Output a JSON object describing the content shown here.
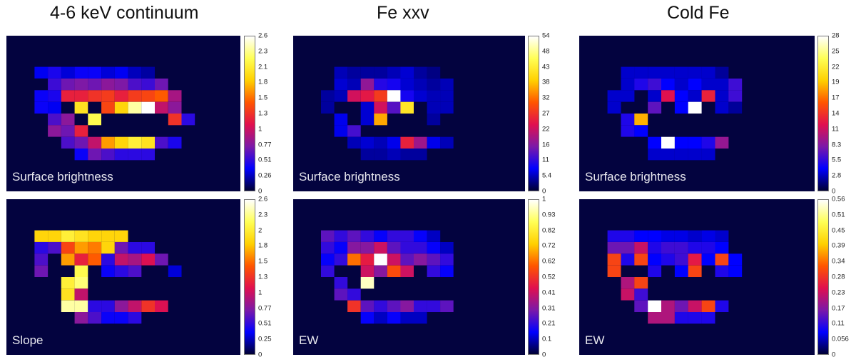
{
  "columns": [
    {
      "title": "4-6 keV continuum"
    },
    {
      "title": "Fe xxv"
    },
    {
      "title": "Cold Fe"
    }
  ],
  "colors": {
    "background": "#03033f",
    "colormap": [
      "#000033",
      "#0000ff",
      "#7c19a8",
      "#e0104f",
      "#ff5500",
      "#ffd000",
      "#ffff55",
      "#ffffff"
    ]
  },
  "chart_data": [
    {
      "type": "heatmap",
      "column": "4-6 keV continuum",
      "label": "Surface brightness",
      "colorbar_ticks": [
        "2.6",
        "2.3",
        "2.1",
        "1.8",
        "1.5",
        "1.3",
        "1",
        "0.77",
        "0.51",
        "0.26",
        "0"
      ],
      "range": [
        0,
        2.6
      ],
      "cells": [
        [
          0.35,
          0.45,
          0.3,
          0.4,
          0.4,
          0.3,
          0.35,
          0.25,
          0.2,
          0.0,
          0.0,
          0.0,
          0.0,
          0.0
        ],
        [
          0.0,
          0.55,
          0.7,
          0.75,
          0.7,
          0.8,
          0.75,
          0.6,
          0.55,
          0.7,
          0.0,
          0.0,
          0.0,
          0.0
        ],
        [
          0.4,
          0.45,
          1.2,
          1.2,
          1.3,
          1.35,
          1.2,
          1.35,
          1.4,
          1.5,
          0.9,
          0.0,
          0.0,
          0.0
        ],
        [
          0.4,
          0.35,
          0.0,
          2.0,
          0.0,
          1.4,
          1.9,
          2.4,
          2.6,
          1.0,
          0.8,
          0.0,
          0.0,
          0.0
        ],
        [
          0.0,
          0.6,
          0.8,
          0.0,
          2.2,
          0.0,
          0.0,
          0.0,
          0.0,
          0.0,
          1.3,
          0.5,
          0.0,
          0.0
        ],
        [
          0.0,
          0.8,
          0.7,
          1.2,
          0.0,
          0.0,
          0.0,
          0.0,
          0.0,
          0.0,
          0.0,
          0.0,
          0.0,
          0.0
        ],
        [
          0.0,
          0.0,
          0.6,
          0.7,
          1.0,
          1.7,
          1.9,
          2.1,
          2.0,
          0.6,
          0.45,
          0.0,
          0.0,
          0.0
        ],
        [
          0.0,
          0.0,
          0.0,
          0.4,
          0.7,
          0.6,
          0.5,
          0.5,
          0.5,
          0.0,
          0.0,
          0.0,
          0.0,
          0.0
        ]
      ]
    },
    {
      "type": "heatmap",
      "column": "4-6 keV continuum",
      "label": "Slope",
      "colorbar_ticks": [
        "2.6",
        "2.3",
        "2",
        "1.8",
        "1.5",
        "1.3",
        "1",
        "0.77",
        "0.51",
        "0.25",
        "0"
      ],
      "range": [
        0,
        2.6
      ],
      "cells": [
        [
          1.9,
          1.9,
          2.1,
          2.0,
          1.9,
          1.9,
          1.9,
          0.0,
          0.0,
          0.0,
          0.0,
          0.0,
          0.0,
          0.0
        ],
        [
          0.5,
          0.6,
          1.4,
          1.7,
          1.6,
          1.9,
          0.7,
          0.5,
          0.5,
          0.0,
          0.0,
          0.0,
          0.0,
          0.0
        ],
        [
          0.6,
          0.0,
          1.7,
          1.2,
          1.5,
          0.5,
          1.0,
          0.9,
          1.1,
          0.7,
          0.0,
          0.0,
          0.0,
          0.0
        ],
        [
          0.7,
          0.0,
          0.0,
          2.2,
          0.0,
          0.4,
          0.5,
          0.6,
          0.0,
          0.0,
          0.3,
          0.0,
          0.0,
          0.0
        ],
        [
          0.0,
          0.0,
          2.1,
          2.3,
          0.0,
          0.0,
          0.0,
          0.0,
          0.0,
          0.0,
          0.0,
          0.0,
          0.0,
          0.0
        ],
        [
          0.0,
          0.0,
          2.0,
          1.0,
          0.0,
          0.0,
          0.0,
          0.0,
          0.0,
          0.0,
          0.0,
          0.0,
          0.0,
          0.0
        ],
        [
          0.0,
          0.0,
          2.4,
          2.4,
          0.5,
          0.5,
          0.8,
          1.0,
          1.3,
          1.1,
          0.0,
          0.0,
          0.0,
          0.0
        ],
        [
          0.0,
          0.0,
          0.0,
          0.8,
          0.6,
          0.4,
          0.4,
          0.5,
          0.0,
          0.0,
          0.0,
          0.0,
          0.0,
          0.0
        ]
      ]
    },
    {
      "type": "heatmap",
      "column": "Fe xxv",
      "label": "Surface brightness",
      "colorbar_ticks": [
        "54",
        "48",
        "43",
        "38",
        "32",
        "27",
        "22",
        "16",
        "11",
        "5.4",
        "0"
      ],
      "range": [
        0,
        54
      ],
      "cells": [
        [
          0.0,
          5,
          4,
          4,
          4,
          5,
          6,
          4,
          3,
          0.0,
          0.0,
          0.0,
          0.0,
          0.0
        ],
        [
          0.0,
          6,
          5,
          17,
          10,
          9,
          6,
          5,
          4,
          5,
          0.0,
          0.0,
          0.0,
          0.0
        ],
        [
          4,
          5,
          22,
          24,
          28,
          54,
          9,
          6,
          5,
          5,
          0.0,
          0.0,
          0.0,
          0.0
        ],
        [
          4,
          0.0,
          0.0,
          6,
          22,
          13,
          42,
          0.0,
          5,
          5,
          0.0,
          0.0,
          0.0,
          0.0
        ],
        [
          0.0,
          7,
          0.0,
          6,
          36,
          0.0,
          0.0,
          0.0,
          4,
          0.0,
          0.0,
          0.0,
          0.0,
          0.0
        ],
        [
          0.0,
          7,
          12,
          0.0,
          0.0,
          0.0,
          0.0,
          0.0,
          0.0,
          0.0,
          0.0,
          0.0,
          0.0,
          0.0
        ],
        [
          0.0,
          0.0,
          5,
          6,
          5,
          7,
          25,
          18,
          7,
          5,
          0.0,
          0.0,
          0.0,
          0.0
        ],
        [
          0.0,
          0.0,
          0.0,
          4,
          4,
          5,
          4,
          4,
          0.0,
          0.0,
          0.0,
          0.0,
          0.0,
          0.0
        ]
      ]
    },
    {
      "type": "heatmap",
      "column": "Fe xxv",
      "label": "EW",
      "colorbar_ticks": [
        "1",
        "0.93",
        "0.82",
        "0.72",
        "0.62",
        "0.52",
        "0.41",
        "0.31",
        "0.21",
        "0.1",
        "0"
      ],
      "range": [
        0,
        1.0
      ],
      "cells": [
        [
          0.25,
          0.2,
          0.25,
          0.2,
          0.15,
          0.2,
          0.2,
          0.15,
          0.1,
          0.0,
          0.0,
          0.0,
          0.0,
          0.0
        ],
        [
          0.2,
          0.15,
          0.3,
          0.3,
          0.4,
          0.25,
          0.2,
          0.2,
          0.15,
          0.1,
          0.0,
          0.0,
          0.0,
          0.0
        ],
        [
          0.15,
          0.2,
          0.6,
          0.45,
          1.0,
          0.4,
          0.25,
          0.3,
          0.25,
          0.2,
          0.0,
          0.0,
          0.0,
          0.0
        ],
        [
          0.2,
          0.0,
          0.0,
          0.4,
          0.3,
          0.55,
          0.4,
          0.0,
          0.2,
          0.15,
          0.0,
          0.0,
          0.0,
          0.0
        ],
        [
          0.0,
          0.2,
          0.0,
          0.95,
          0.0,
          0.0,
          0.0,
          0.0,
          0.0,
          0.0,
          0.0,
          0.0,
          0.0,
          0.0
        ],
        [
          0.0,
          0.25,
          0.2,
          0.0,
          0.0,
          0.0,
          0.0,
          0.0,
          0.0,
          0.0,
          0.0,
          0.0,
          0.0,
          0.0
        ],
        [
          0.0,
          0.0,
          0.5,
          0.25,
          0.2,
          0.25,
          0.3,
          0.2,
          0.2,
          0.25,
          0.0,
          0.0,
          0.0,
          0.0
        ],
        [
          0.0,
          0.0,
          0.0,
          0.15,
          0.1,
          0.15,
          0.1,
          0.1,
          0.0,
          0.0,
          0.0,
          0.0,
          0.0,
          0.0
        ]
      ]
    },
    {
      "type": "heatmap",
      "column": "Cold Fe",
      "label": "Surface brightness",
      "colorbar_ticks": [
        "28",
        "25",
        "22",
        "19",
        "17",
        "14",
        "11",
        "8.3",
        "5.5",
        "2.8",
        "0"
      ],
      "range": [
        0,
        28
      ],
      "cells": [
        [
          0.0,
          3,
          3,
          3,
          3,
          3,
          3,
          3,
          2,
          0.0,
          0.0,
          0.0,
          0.0,
          0.0
        ],
        [
          0.0,
          3,
          5,
          6,
          4,
          3,
          4,
          3,
          3,
          6,
          0.0,
          0.0,
          0.0,
          0.0
        ],
        [
          3,
          3,
          0.0,
          3,
          12,
          4,
          3,
          13,
          3,
          6,
          0.0,
          0.0,
          0.0,
          0.0
        ],
        [
          3,
          0.0,
          0.0,
          7,
          0.0,
          4,
          28,
          0.0,
          3,
          2,
          0.0,
          0.0,
          0.0,
          0.0
        ],
        [
          0.0,
          5,
          19,
          0.0,
          0.0,
          0.0,
          0.0,
          0.0,
          0.0,
          0.0,
          0.0,
          0.0,
          0.0,
          0.0
        ],
        [
          0.0,
          5,
          4,
          0.0,
          0.0,
          0.0,
          0.0,
          0.0,
          0.0,
          0.0,
          0.0,
          0.0,
          0.0,
          0.0
        ],
        [
          0.0,
          0.0,
          0.0,
          4,
          28,
          4,
          4,
          5,
          9,
          0.0,
          0.0,
          0.0,
          0.0,
          0.0
        ],
        [
          0.0,
          0.0,
          0.0,
          3,
          3,
          3,
          3,
          3,
          0.0,
          0.0,
          0.0,
          0.0,
          0.0,
          0.0
        ]
      ]
    },
    {
      "type": "heatmap",
      "column": "Cold Fe",
      "label": "EW",
      "colorbar_ticks": [
        "0.56",
        "0.51",
        "0.45",
        "0.39",
        "0.34",
        "0.28",
        "0.23",
        "0.17",
        "0.11",
        "0.056",
        "0"
      ],
      "range": [
        0,
        0.56
      ],
      "cells": [
        [
          0.1,
          0.1,
          0.08,
          0.08,
          0.07,
          0.07,
          0.06,
          0.07,
          0.06,
          0.0,
          0.0,
          0.0,
          0.0,
          0.0
        ],
        [
          0.15,
          0.15,
          0.22,
          0.1,
          0.12,
          0.12,
          0.1,
          0.1,
          0.08,
          0.0,
          0.0,
          0.0,
          0.0,
          0.0
        ],
        [
          0.3,
          0.1,
          0.3,
          0.08,
          0.1,
          0.12,
          0.25,
          0.08,
          0.3,
          0.08,
          0.0,
          0.0,
          0.0,
          0.0
        ],
        [
          0.3,
          0.0,
          0.0,
          0.1,
          0.0,
          0.08,
          0.3,
          0.0,
          0.1,
          0.08,
          0.0,
          0.0,
          0.0,
          0.0
        ],
        [
          0.0,
          0.2,
          0.3,
          0.0,
          0.0,
          0.0,
          0.0,
          0.0,
          0.0,
          0.0,
          0.0,
          0.0,
          0.0,
          0.0
        ],
        [
          0.0,
          0.22,
          0.12,
          0.0,
          0.0,
          0.0,
          0.0,
          0.0,
          0.0,
          0.0,
          0.0,
          0.0,
          0.0,
          0.0
        ],
        [
          0.0,
          0.0,
          0.14,
          0.56,
          0.2,
          0.15,
          0.22,
          0.3,
          0.1,
          0.0,
          0.0,
          0.0,
          0.0,
          0.0
        ],
        [
          0.0,
          0.0,
          0.0,
          0.2,
          0.2,
          0.1,
          0.1,
          0.1,
          0.0,
          0.0,
          0.0,
          0.0,
          0.0,
          0.0
        ]
      ]
    }
  ]
}
